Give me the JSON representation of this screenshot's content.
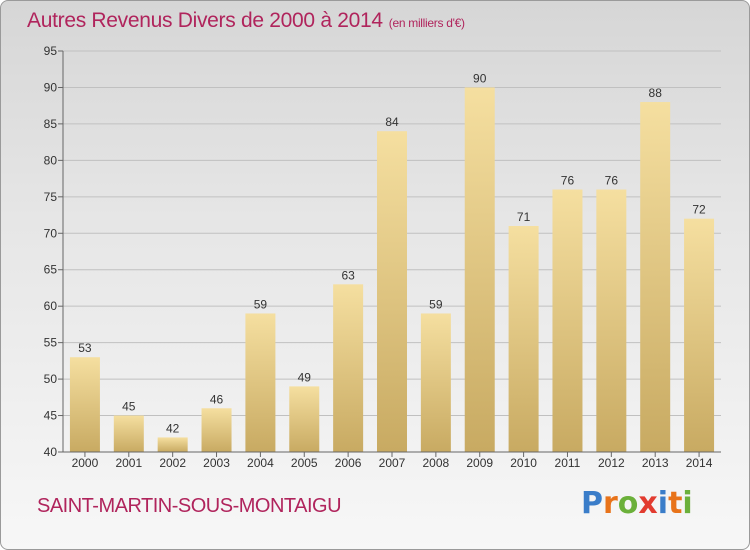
{
  "header": {
    "title": "Autres Revenus Divers de 2000 à 2014",
    "subtitle": "(en milliers d'€)"
  },
  "footer": {
    "location": "SAINT-MARTIN-SOUS-MONTAIGU",
    "logo_letters": [
      "P",
      "r",
      "o",
      "x",
      "i",
      "t",
      "i"
    ],
    "logo_colors": [
      "#3a7dc9",
      "#e8731a",
      "#6bb03a",
      "#e23b2f",
      "#3a7dc9",
      "#e8731a",
      "#6bb03a"
    ]
  },
  "chart_data": {
    "type": "bar",
    "categories": [
      "2000",
      "2001",
      "2002",
      "2003",
      "2004",
      "2005",
      "2006",
      "2007",
      "2008",
      "2009",
      "2010",
      "2011",
      "2012",
      "2013",
      "2014"
    ],
    "values": [
      53,
      45,
      42,
      46,
      59,
      49,
      63,
      84,
      59,
      90,
      71,
      76,
      76,
      88,
      72
    ],
    "title": "Autres Revenus Divers de 2000 à 2014",
    "subtitle": "(en milliers d'€)",
    "xlabel": "",
    "ylabel": "",
    "ylim": [
      40,
      95
    ],
    "yticks": [
      40,
      45,
      50,
      55,
      60,
      65,
      70,
      75,
      80,
      85,
      90,
      95
    ],
    "grid": true,
    "data_labels": true,
    "colors": {
      "bar_light": "#f5dfa0",
      "bar_dark": "#c8aa62",
      "grid": "#c0c0c0",
      "axis": "#666666",
      "text": "#333333"
    }
  }
}
